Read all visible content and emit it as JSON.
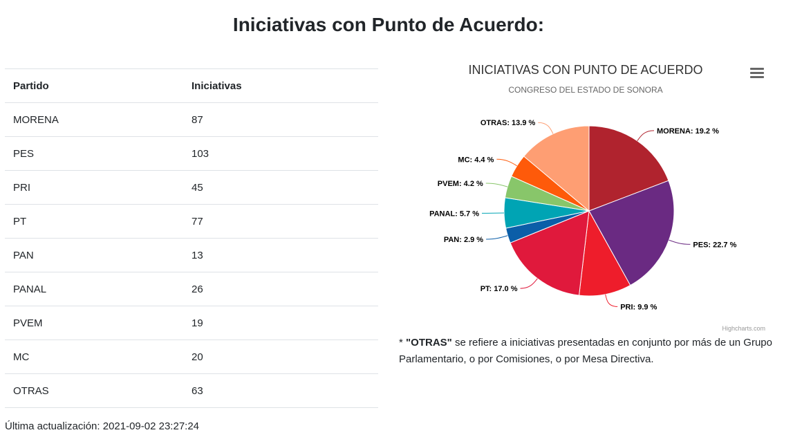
{
  "page": {
    "title": "Iniciativas con Punto de Acuerdo:",
    "updated": "Última actualización: 2021-09-02 23:27:24"
  },
  "table": {
    "headers": [
      "Partido",
      "Iniciativas"
    ],
    "rows": [
      [
        "MORENA",
        "87"
      ],
      [
        "PES",
        "103"
      ],
      [
        "PRI",
        "45"
      ],
      [
        "PT",
        "77"
      ],
      [
        "PAN",
        "13"
      ],
      [
        "PANAL",
        "26"
      ],
      [
        "PVEM",
        "19"
      ],
      [
        "MC",
        "20"
      ],
      [
        "OTRAS",
        "63"
      ]
    ]
  },
  "note": {
    "prefix": "* ",
    "bold": "\"OTRAS\"",
    "text": " se refiere a iniciativas presentadas en conjunto por más de un Grupo Parlamentario, o por Comisiones, o por Mesa Directiva."
  },
  "chart_data": {
    "type": "pie",
    "title": "INICIATIVAS CON PUNTO DE ACUERDO",
    "subtitle": "CONGRESO DEL ESTADO DE SONORA",
    "credits": "Highcharts.com",
    "slices": [
      {
        "name": "MORENA",
        "value": 87,
        "label": "MORENA: 19.2 %",
        "color": "#b0232e"
      },
      {
        "name": "PES",
        "value": 103,
        "label": "PES: 22.7 %",
        "color": "#6a2a82"
      },
      {
        "name": "PRI",
        "value": 45,
        "label": "PRI: 9.9 %",
        "color": "#ee1d2b"
      },
      {
        "name": "PT",
        "value": 77,
        "label": "PT: 17.0 %",
        "color": "#e0193c"
      },
      {
        "name": "PAN",
        "value": 13,
        "label": "PAN: 2.9 %",
        "color": "#0b5ea8"
      },
      {
        "name": "PANAL",
        "value": 26,
        "label": "PANAL: 5.7 %",
        "color": "#00a4b4"
      },
      {
        "name": "PVEM",
        "value": 19,
        "label": "PVEM: 4.2 %",
        "color": "#88c66a"
      },
      {
        "name": "MC",
        "value": 20,
        "label": "MC: 4.4 %",
        "color": "#fe5a0a"
      },
      {
        "name": "OTRAS",
        "value": 63,
        "label": "OTRAS: 13.9 %",
        "color": "#fe9e73"
      }
    ]
  }
}
